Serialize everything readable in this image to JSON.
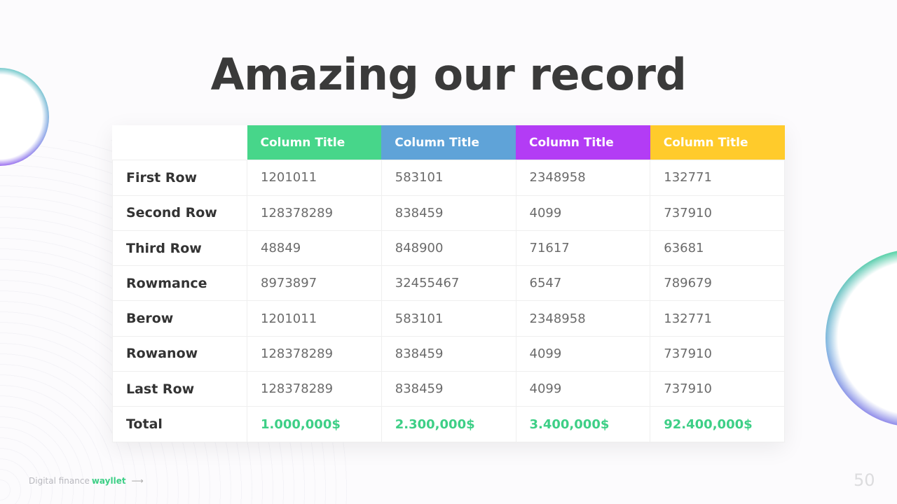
{
  "title": "Amazing our record",
  "table": {
    "headers": [
      {
        "label": "Column Title",
        "color": "#47d68a"
      },
      {
        "label": "Column Title",
        "color": "#5fa3d8"
      },
      {
        "label": "Column Title",
        "color": "#b33cf5"
      },
      {
        "label": "Column Title",
        "color": "#ffcb2b"
      }
    ],
    "rows": [
      {
        "label": "First Row",
        "values": [
          "1201011",
          "583101",
          "2348958",
          "132771"
        ]
      },
      {
        "label": "Second Row",
        "values": [
          "128378289",
          "838459",
          "4099",
          "737910"
        ]
      },
      {
        "label": "Third Row",
        "values": [
          "48849",
          "848900",
          "71617",
          "63681"
        ]
      },
      {
        "label": "Rowmance",
        "values": [
          "8973897",
          "32455467",
          "6547",
          "789679"
        ]
      },
      {
        "label": "Berow",
        "values": [
          "1201011",
          "583101",
          "2348958",
          "132771"
        ]
      },
      {
        "label": "Rowanow",
        "values": [
          "128378289",
          "838459",
          "4099",
          "737910"
        ]
      },
      {
        "label": "Last Row",
        "values": [
          "128378289",
          "838459",
          "4099",
          "737910"
        ]
      }
    ],
    "total": {
      "label": "Total",
      "values": [
        "1.000,000$",
        "2.300,000$",
        "3.400,000$",
        "92.400,000$"
      ]
    }
  },
  "footer": {
    "text": "Digital finance",
    "brand": "wayllet",
    "arrow": "⟶"
  },
  "page_number": "50"
}
